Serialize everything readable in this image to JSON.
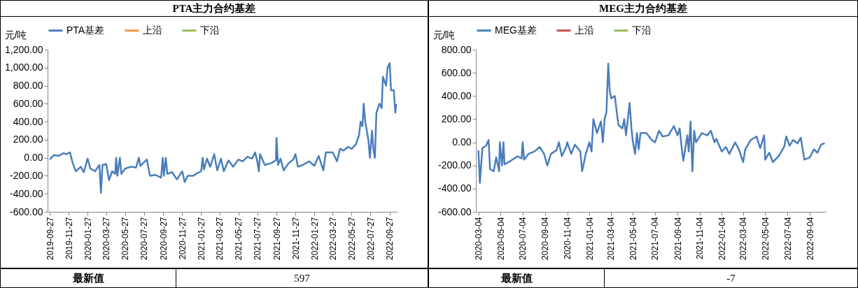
{
  "chart_data": [
    {
      "type": "line",
      "title": "PTA主力合约基差",
      "ylabel": "元/吨",
      "legend": "top",
      "grid": false,
      "line_style": "solid",
      "xlim": [
        "2019-09-20",
        "2022-10-22"
      ],
      "xticks": [
        {
          "value": "2019-09-27",
          "label": "2019-09-27"
        },
        {
          "value": "2019-11-27",
          "label": "2019-11-27"
        },
        {
          "value": "2020-01-27",
          "label": "2020-01-27"
        },
        {
          "value": "2020-03-27",
          "label": "2020-03-27"
        },
        {
          "value": "2020-05-27",
          "label": "2020-05-27"
        },
        {
          "value": "2020-07-27",
          "label": "2020-07-27"
        },
        {
          "value": "2020-09-27",
          "label": "2020-09-27"
        },
        {
          "value": "2020-11-27",
          "label": "2020-11-27"
        },
        {
          "value": "2021-01-27",
          "label": "2021-01-27"
        },
        {
          "value": "2021-03-27",
          "label": "2021-03-27"
        },
        {
          "value": "2021-05-27",
          "label": "2021-05-27"
        },
        {
          "value": "2021-07-27",
          "label": "2021-07-27"
        },
        {
          "value": "2021-09-27",
          "label": "2021-09-27"
        },
        {
          "value": "2021-11-27",
          "label": "2021-11-27"
        },
        {
          "value": "2022-01-27",
          "label": "2022-01-27"
        },
        {
          "value": "2022-03-27",
          "label": "2022-03-27"
        },
        {
          "value": "2022-05-27",
          "label": "2022-05-27"
        },
        {
          "value": "2022-07-27",
          "label": "2022-07-27"
        },
        {
          "value": "2022-09-27",
          "label": "2022-09-27"
        }
      ],
      "ylim": [
        -600,
        1200
      ],
      "yticks": [
        {
          "value": -600,
          "label": "-600.00"
        },
        {
          "value": -400,
          "label": "-400.00"
        },
        {
          "value": -200,
          "label": "-200.00"
        },
        {
          "value": 0,
          "label": "0.00"
        },
        {
          "value": 200,
          "label": "200.00"
        },
        {
          "value": 400,
          "label": "400.00"
        },
        {
          "value": 600,
          "label": "600.00"
        },
        {
          "value": 800,
          "label": "800.00"
        },
        {
          "value": 1000,
          "label": "1,000.00"
        },
        {
          "value": 1200,
          "label": "1,200.00"
        }
      ],
      "x": [
        "2019-09-27",
        "2019-10-10",
        "2019-10-25",
        "2019-11-10",
        "2019-11-20",
        "2019-12-01",
        "2019-12-10",
        "2019-12-20",
        "2020-01-05",
        "2020-01-15",
        "2020-01-27",
        "2020-02-05",
        "2020-02-20",
        "2020-03-05",
        "2020-03-10",
        "2020-03-15",
        "2020-03-27",
        "2020-04-05",
        "2020-04-15",
        "2020-04-25",
        "2020-04-28",
        "2020-05-02",
        "2020-05-10",
        "2020-05-15",
        "2020-05-27",
        "2020-06-15",
        "2020-07-01",
        "2020-07-10",
        "2020-07-15",
        "2020-07-27",
        "2020-08-05",
        "2020-08-15",
        "2020-09-01",
        "2020-09-20",
        "2020-09-25",
        "2020-09-29",
        "2020-10-05",
        "2020-10-10",
        "2020-10-25",
        "2020-11-10",
        "2020-11-27",
        "2020-12-05",
        "2020-12-15",
        "2021-01-01",
        "2021-01-15",
        "2021-01-27",
        "2021-02-01",
        "2021-02-05",
        "2021-02-15",
        "2021-02-25",
        "2021-03-10",
        "2021-03-20",
        "2021-04-01",
        "2021-04-10",
        "2021-04-25",
        "2021-05-10",
        "2021-05-27",
        "2021-06-10",
        "2021-06-25",
        "2021-07-10",
        "2021-07-20",
        "2021-07-27",
        "2021-08-01",
        "2021-08-05",
        "2021-08-20",
        "2021-09-10",
        "2021-09-25",
        "2021-09-27",
        "2021-10-02",
        "2021-10-10",
        "2021-10-20",
        "2021-11-05",
        "2021-11-20",
        "2021-11-27",
        "2021-12-05",
        "2021-12-20",
        "2022-01-10",
        "2022-01-27",
        "2022-02-10",
        "2022-02-25",
        "2022-03-05",
        "2022-03-27",
        "2022-04-10",
        "2022-04-20",
        "2022-05-01",
        "2022-05-15",
        "2022-05-27",
        "2022-06-10",
        "2022-06-20",
        "2022-06-25",
        "2022-07-01",
        "2022-07-05",
        "2022-07-10",
        "2022-07-20",
        "2022-07-25",
        "2022-08-01",
        "2022-08-05",
        "2022-08-10",
        "2022-08-15",
        "2022-08-25",
        "2022-09-01",
        "2022-09-05",
        "2022-09-15",
        "2022-09-20",
        "2022-09-27",
        "2022-10-01",
        "2022-10-10",
        "2022-10-15",
        "2022-10-18"
      ],
      "series": [
        {
          "name": "PTA基差",
          "color": "#4a7ebb",
          "values": [
            -20,
            30,
            20,
            50,
            40,
            60,
            -60,
            -150,
            -100,
            -160,
            -10,
            -120,
            -150,
            -80,
            -390,
            -80,
            -70,
            -250,
            -150,
            -180,
            0,
            -200,
            0,
            -180,
            -120,
            -100,
            -110,
            0,
            -90,
            -50,
            -20,
            -200,
            -190,
            -220,
            0,
            -200,
            0,
            -180,
            -160,
            -240,
            -150,
            -270,
            -200,
            -200,
            -170,
            -150,
            0,
            -130,
            -10,
            -100,
            40,
            -140,
            -10,
            -150,
            -30,
            -100,
            -20,
            -40,
            10,
            -10,
            60,
            -40,
            -150,
            40,
            -80,
            -60,
            -30,
            220,
            -80,
            -10,
            -140,
            -60,
            -20,
            40,
            -100,
            -80,
            -40,
            -90,
            20,
            -140,
            60,
            60,
            -40,
            100,
            80,
            120,
            100,
            150,
            250,
            400,
            350,
            600,
            400,
            200,
            0,
            300,
            100,
            0,
            500,
            600,
            550,
            900,
            800,
            1000,
            1050,
            750,
            750,
            500,
            597
          ]
        },
        {
          "name": "上沿",
          "color": "#f79646",
          "values": [
            null,
            null,
            null,
            null,
            null,
            null,
            null,
            null,
            null,
            null,
            null,
            null,
            null,
            null,
            null,
            null,
            null,
            null,
            null,
            null,
            null,
            null,
            null,
            null,
            null,
            null,
            null,
            null,
            null,
            null,
            null,
            null,
            null,
            null,
            null,
            null,
            null,
            null,
            null,
            null,
            null,
            null,
            null,
            null,
            null,
            null,
            null,
            null,
            null,
            null,
            null,
            null,
            null,
            null,
            null,
            null,
            null,
            null,
            null,
            null,
            null,
            null,
            null,
            null,
            null,
            null,
            null,
            null,
            null,
            null,
            null,
            null,
            null,
            null,
            null,
            null,
            null,
            null,
            null,
            null,
            null,
            null,
            null,
            null,
            null,
            null,
            null,
            null,
            null,
            null,
            null,
            null,
            null,
            null,
            null,
            null,
            null,
            null,
            null,
            null,
            null,
            null,
            null,
            null,
            null,
            null,
            null,
            null,
            null
          ]
        },
        {
          "name": "下沿",
          "color": "#9bbb59",
          "values": [
            null,
            null,
            null,
            null,
            null,
            null,
            null,
            null,
            null,
            null,
            null,
            null,
            null,
            null,
            null,
            null,
            null,
            null,
            null,
            null,
            null,
            null,
            null,
            null,
            null,
            null,
            null,
            null,
            null,
            null,
            null,
            null,
            null,
            null,
            null,
            null,
            null,
            null,
            null,
            null,
            null,
            null,
            null,
            null,
            null,
            null,
            null,
            null,
            null,
            null,
            null,
            null,
            null,
            null,
            null,
            null,
            null,
            null,
            null,
            null,
            null,
            null,
            null,
            null,
            null,
            null,
            null,
            null,
            null,
            null,
            null,
            null,
            null,
            null,
            null,
            null,
            null,
            null,
            null,
            null,
            null,
            null,
            null,
            null,
            null,
            null,
            null,
            null,
            null,
            null,
            null,
            null,
            null,
            null,
            null,
            null,
            null,
            null,
            null,
            null,
            null,
            null,
            null,
            null,
            null,
            null,
            null,
            null,
            null
          ]
        }
      ],
      "annotations": [
        "最新值",
        "597"
      ]
    },
    {
      "type": "line",
      "title": "MEG主力合约基差",
      "ylabel": "元/吨",
      "legend": "top",
      "grid": false,
      "line_style": "solid",
      "xlim": [
        "2020-02-26",
        "2022-10-18"
      ],
      "xticks": [
        {
          "value": "2020-03-04",
          "label": "2020-03-04"
        },
        {
          "value": "2020-05-04",
          "label": "2020-05-04"
        },
        {
          "value": "2020-07-04",
          "label": "2020-07-04"
        },
        {
          "value": "2020-09-04",
          "label": "2020-09-04"
        },
        {
          "value": "2020-11-04",
          "label": "2020-11-04"
        },
        {
          "value": "2021-01-04",
          "label": "2021-01-04"
        },
        {
          "value": "2021-03-04",
          "label": "2021-03-04"
        },
        {
          "value": "2021-05-04",
          "label": "2021-05-04"
        },
        {
          "value": "2021-07-04",
          "label": "2021-07-04"
        },
        {
          "value": "2021-09-04",
          "label": "2021-09-04"
        },
        {
          "value": "2021-11-04",
          "label": "2021-11-04"
        },
        {
          "value": "2022-01-04",
          "label": "2022-01-04"
        },
        {
          "value": "2022-03-04",
          "label": "2022-03-04"
        },
        {
          "value": "2022-05-04",
          "label": "2022-05-04"
        },
        {
          "value": "2022-07-04",
          "label": "2022-07-04"
        },
        {
          "value": "2022-09-04",
          "label": "2022-09-04"
        }
      ],
      "ylim": [
        -600,
        800
      ],
      "yticks": [
        {
          "value": -600,
          "label": "-600.00"
        },
        {
          "value": -400,
          "label": "-400.00"
        },
        {
          "value": -200,
          "label": "-200.00"
        },
        {
          "value": 0,
          "label": "0.00"
        },
        {
          "value": 200,
          "label": "200.00"
        },
        {
          "value": 400,
          "label": "400.00"
        },
        {
          "value": 600,
          "label": "600.00"
        },
        {
          "value": 800,
          "label": "800.00"
        }
      ],
      "x": [
        "2020-03-04",
        "2020-03-08",
        "2020-03-15",
        "2020-03-25",
        "2020-04-01",
        "2020-04-05",
        "2020-04-15",
        "2020-04-22",
        "2020-04-30",
        "2020-05-02",
        "2020-05-08",
        "2020-05-12",
        "2020-05-15",
        "2020-06-01",
        "2020-06-20",
        "2020-07-01",
        "2020-07-04",
        "2020-07-08",
        "2020-07-20",
        "2020-08-05",
        "2020-08-20",
        "2020-09-01",
        "2020-09-10",
        "2020-09-20",
        "2020-10-05",
        "2020-10-12",
        "2020-10-20",
        "2020-11-01",
        "2020-11-04",
        "2020-11-15",
        "2020-11-25",
        "2020-12-10",
        "2020-12-15",
        "2020-12-25",
        "2021-01-04",
        "2021-01-10",
        "2021-01-15",
        "2021-01-25",
        "2021-02-05",
        "2021-02-10",
        "2021-02-15",
        "2021-02-20",
        "2021-02-25",
        "2021-03-01",
        "2021-03-05",
        "2021-03-15",
        "2021-03-25",
        "2021-04-05",
        "2021-04-10",
        "2021-04-15",
        "2021-04-25",
        "2021-04-30",
        "2021-05-04",
        "2021-05-10",
        "2021-05-15",
        "2021-05-20",
        "2021-05-25",
        "2021-06-10",
        "2021-06-25",
        "2021-07-04",
        "2021-07-15",
        "2021-07-25",
        "2021-08-10",
        "2021-08-25",
        "2021-09-04",
        "2021-09-10",
        "2021-09-15",
        "2021-09-20",
        "2021-10-01",
        "2021-10-05",
        "2021-10-10",
        "2021-10-15",
        "2021-10-20",
        "2021-10-25",
        "2021-11-10",
        "2021-11-25",
        "2021-12-05",
        "2021-12-15",
        "2021-12-20",
        "2022-01-04",
        "2022-01-15",
        "2022-01-25",
        "2022-02-10",
        "2022-02-20",
        "2022-03-04",
        "2022-03-10",
        "2022-03-25",
        "2022-04-10",
        "2022-04-20",
        "2022-05-01",
        "2022-05-04",
        "2022-05-15",
        "2022-05-25",
        "2022-06-10",
        "2022-06-25",
        "2022-07-01",
        "2022-07-10",
        "2022-07-20",
        "2022-08-01",
        "2022-08-10",
        "2022-08-20",
        "2022-09-04",
        "2022-09-15",
        "2022-09-25",
        "2022-10-05",
        "2022-10-15"
      ],
      "series": [
        {
          "name": "MEG基差",
          "color": "#4a7ebb",
          "values": [
            -70,
            -350,
            -50,
            -30,
            20,
            -230,
            -250,
            -130,
            -250,
            0,
            -200,
            0,
            -190,
            -160,
            -120,
            -140,
            0,
            -150,
            -100,
            -80,
            -40,
            -100,
            -200,
            -100,
            -70,
            0,
            -120,
            -40,
            0,
            -100,
            -20,
            -80,
            -250,
            -100,
            0,
            -80,
            200,
            80,
            180,
            0,
            200,
            260,
            680,
            450,
            380,
            400,
            150,
            120,
            200,
            60,
            340,
            120,
            0,
            -100,
            80,
            -60,
            80,
            80,
            20,
            0,
            100,
            50,
            60,
            140,
            60,
            120,
            -30,
            -160,
            60,
            -80,
            180,
            -250,
            100,
            0,
            80,
            60,
            100,
            0,
            30,
            -80,
            -40,
            -100,
            0,
            -60,
            -170,
            -60,
            20,
            50,
            -50,
            60,
            -150,
            -90,
            -170,
            -120,
            -40,
            50,
            -30,
            20,
            -10,
            40,
            -150,
            -130,
            -60,
            -90,
            -20,
            -7
          ]
        },
        {
          "name": "上沿",
          "color": "#c0504d",
          "values": [
            null,
            null,
            null,
            null,
            null,
            null,
            null,
            null,
            null,
            null,
            null,
            null,
            null,
            null,
            null,
            null,
            null,
            null,
            null,
            null,
            null,
            null,
            null,
            null,
            null,
            null,
            null,
            null,
            null,
            null,
            null,
            null,
            null,
            null,
            null,
            null,
            null,
            null,
            null,
            null,
            null,
            null,
            null,
            null,
            null,
            null,
            null,
            null,
            null,
            null,
            null,
            null,
            null,
            null,
            null,
            null,
            null,
            null,
            null,
            null,
            null,
            null,
            null,
            null,
            null,
            null,
            null,
            null,
            null,
            null,
            null,
            null,
            null,
            null,
            null,
            null,
            null,
            null,
            null,
            null,
            null,
            null,
            null,
            null,
            null,
            null,
            null,
            null,
            null,
            null,
            null,
            null,
            null,
            null,
            null,
            null,
            null,
            null,
            null,
            null,
            null,
            null,
            null,
            null,
            null,
            null
          ]
        },
        {
          "name": "下沿",
          "color": "#9bbb59",
          "values": [
            null,
            null,
            null,
            null,
            null,
            null,
            null,
            null,
            null,
            null,
            null,
            null,
            null,
            null,
            null,
            null,
            null,
            null,
            null,
            null,
            null,
            null,
            null,
            null,
            null,
            null,
            null,
            null,
            null,
            null,
            null,
            null,
            null,
            null,
            null,
            null,
            null,
            null,
            null,
            null,
            null,
            null,
            null,
            null,
            null,
            null,
            null,
            null,
            null,
            null,
            null,
            null,
            null,
            null,
            null,
            null,
            null,
            null,
            null,
            null,
            null,
            null,
            null,
            null,
            null,
            null,
            null,
            null,
            null,
            null,
            null,
            null,
            null,
            null,
            null,
            null,
            null,
            null,
            null,
            null,
            null,
            null,
            null,
            null,
            null,
            null,
            null,
            null,
            null,
            null,
            null,
            null,
            null,
            null,
            null,
            null,
            null,
            null,
            null,
            null,
            null,
            null,
            null,
            null,
            null,
            null
          ]
        }
      ],
      "annotations": [
        "最新值",
        "-7"
      ]
    }
  ]
}
